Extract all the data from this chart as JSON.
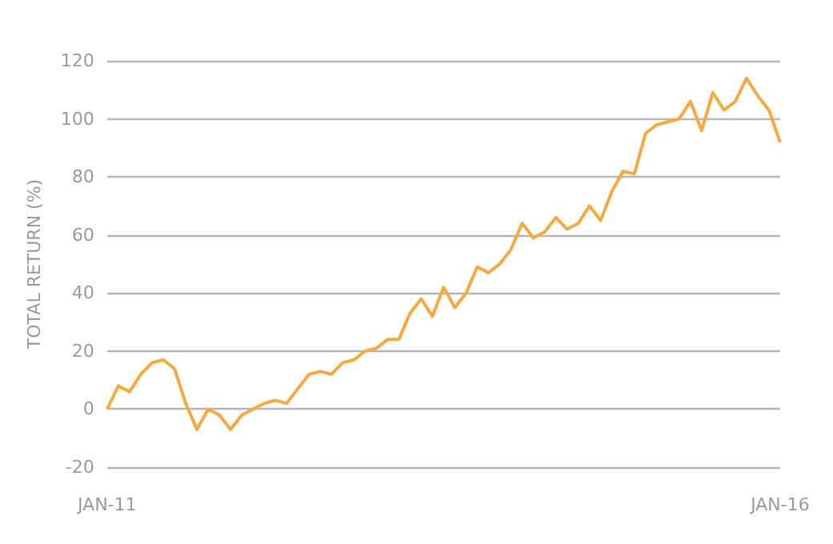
{
  "chart_data": {
    "type": "line",
    "ylabel": "TOTAL RETURN (%)",
    "categories": [
      "JAN-11",
      null,
      null,
      null,
      null,
      null,
      null,
      null,
      null,
      null,
      null,
      null,
      null,
      null,
      null,
      null,
      null,
      null,
      null,
      null,
      null,
      null,
      null,
      null,
      null,
      null,
      null,
      null,
      null,
      null,
      null,
      null,
      null,
      null,
      null,
      null,
      null,
      null,
      null,
      null,
      null,
      null,
      null,
      null,
      null,
      null,
      null,
      null,
      null,
      null,
      null,
      null,
      null,
      null,
      null,
      null,
      null,
      null,
      null,
      null,
      "JAN-16"
    ],
    "series": [
      {
        "color": "#f5a93e",
        "values": [
          0,
          8,
          6,
          12,
          16,
          17,
          14,
          2,
          -7,
          0,
          -2,
          -7,
          -2,
          0,
          2,
          3,
          2,
          7,
          12,
          13,
          12,
          16,
          17,
          20,
          21,
          24,
          24,
          33,
          38,
          32,
          42,
          35,
          40,
          49,
          47,
          50,
          55,
          64,
          59,
          61,
          66,
          62,
          64,
          70,
          65,
          75,
          82,
          81,
          95,
          98,
          99,
          100,
          106,
          96,
          109,
          103,
          106,
          114,
          108,
          103,
          92
        ]
      }
    ],
    "ylim": [
      -20,
      120
    ],
    "yticks": [
      -20,
      0,
      20,
      40,
      60,
      80,
      100,
      120
    ],
    "grid": "y",
    "marker": "none",
    "line_style": "solid"
  }
}
